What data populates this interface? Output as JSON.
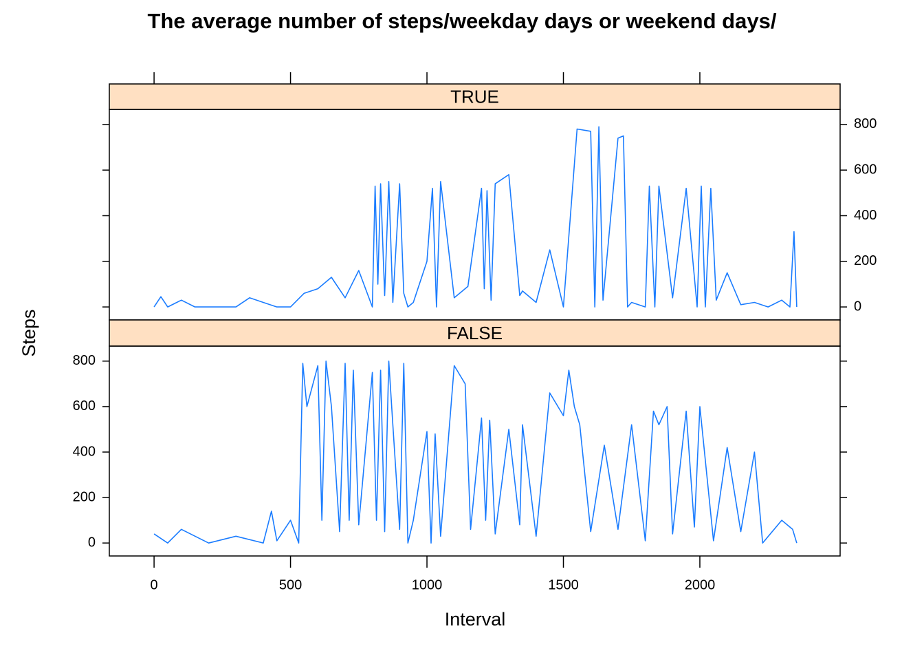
{
  "title": "The average number of steps/weekday days or weekend days/",
  "x_label": "Interval",
  "y_label": "Steps",
  "chart_data": [
    {
      "type": "line",
      "strip": "TRUE",
      "color": "#1a7cff",
      "x": [
        0,
        25,
        50,
        100,
        150,
        200,
        300,
        350,
        400,
        450,
        500,
        550,
        600,
        650,
        700,
        750,
        800,
        810,
        820,
        830,
        845,
        860,
        875,
        900,
        915,
        930,
        950,
        1000,
        1020,
        1035,
        1050,
        1100,
        1150,
        1200,
        1210,
        1220,
        1235,
        1250,
        1300,
        1340,
        1350,
        1400,
        1450,
        1500,
        1550,
        1600,
        1615,
        1630,
        1645,
        1700,
        1720,
        1735,
        1750,
        1800,
        1815,
        1835,
        1850,
        1900,
        1950,
        1990,
        2005,
        2020,
        2040,
        2060,
        2100,
        2150,
        2200,
        2250,
        2300,
        2330,
        2345,
        2355
      ],
      "values": [
        0,
        45,
        0,
        30,
        0,
        0,
        0,
        40,
        20,
        0,
        0,
        60,
        80,
        130,
        40,
        160,
        0,
        530,
        100,
        540,
        50,
        550,
        20,
        540,
        60,
        0,
        20,
        200,
        520,
        0,
        550,
        40,
        90,
        520,
        80,
        510,
        30,
        540,
        580,
        50,
        70,
        20,
        250,
        0,
        780,
        770,
        0,
        790,
        30,
        740,
        750,
        0,
        20,
        0,
        530,
        0,
        530,
        40,
        520,
        0,
        530,
        0,
        520,
        30,
        150,
        10,
        20,
        0,
        30,
        0,
        330,
        0
      ],
      "xlim": [
        -164,
        2514
      ],
      "ylim": [
        -57,
        866
      ],
      "xticks": [
        0,
        500,
        1000,
        1500,
        2000
      ],
      "yticks": [
        0,
        200,
        400,
        600,
        800
      ]
    },
    {
      "type": "line",
      "strip": "FALSE",
      "color": "#1a7cff",
      "x": [
        0,
        50,
        100,
        200,
        300,
        400,
        430,
        450,
        500,
        530,
        545,
        560,
        600,
        615,
        630,
        650,
        680,
        700,
        715,
        730,
        750,
        800,
        815,
        830,
        845,
        860,
        875,
        900,
        915,
        930,
        950,
        1000,
        1015,
        1030,
        1050,
        1100,
        1140,
        1160,
        1200,
        1215,
        1230,
        1250,
        1300,
        1340,
        1350,
        1400,
        1450,
        1500,
        1520,
        1540,
        1560,
        1600,
        1650,
        1700,
        1750,
        1800,
        1830,
        1850,
        1880,
        1900,
        1950,
        1980,
        2000,
        2050,
        2100,
        2150,
        2200,
        2230,
        2300,
        2340,
        2355
      ],
      "values": [
        40,
        0,
        60,
        0,
        30,
        0,
        140,
        10,
        100,
        0,
        790,
        600,
        780,
        100,
        800,
        600,
        50,
        790,
        100,
        760,
        80,
        750,
        100,
        760,
        50,
        800,
        520,
        60,
        790,
        0,
        100,
        490,
        0,
        480,
        30,
        780,
        700,
        60,
        550,
        100,
        540,
        40,
        500,
        80,
        520,
        30,
        660,
        560,
        760,
        600,
        520,
        50,
        430,
        60,
        520,
        10,
        580,
        520,
        600,
        40,
        580,
        70,
        600,
        10,
        420,
        50,
        400,
        0,
        100,
        60,
        0
      ],
      "xlim": [
        -164,
        2514
      ],
      "ylim": [
        -57,
        866
      ],
      "xticks": [
        0,
        500,
        1000,
        1500,
        2000
      ],
      "yticks": [
        0,
        200,
        400,
        600,
        800
      ]
    }
  ]
}
